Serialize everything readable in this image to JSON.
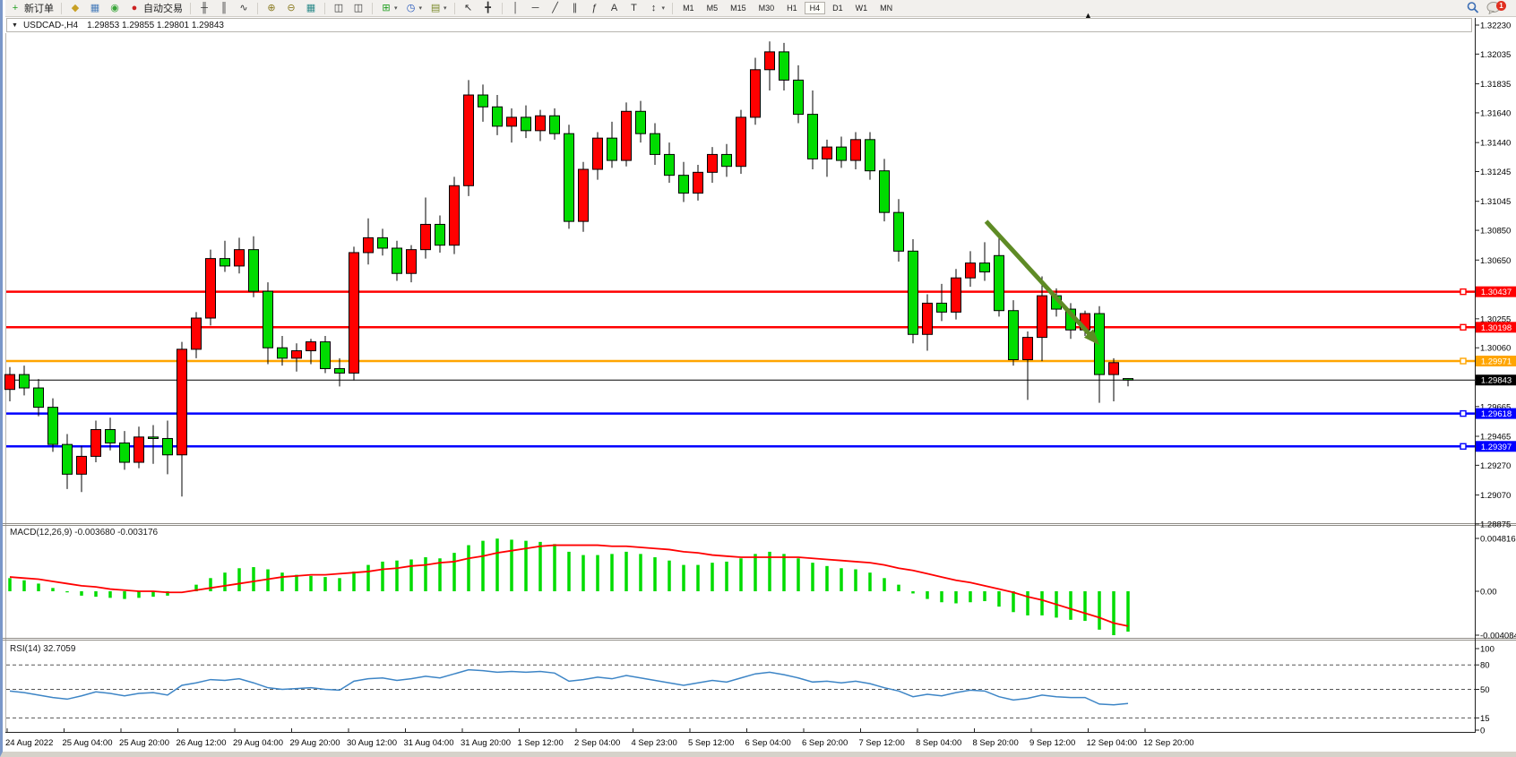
{
  "app": {
    "notification_badge": "1"
  },
  "toolbar": {
    "groups": [
      {
        "items": [
          {
            "name": "new-order-button",
            "glyph": "+",
            "glyph_color": "#1f9e1f",
            "label": "新订单"
          }
        ]
      },
      {
        "items": [
          {
            "name": "styler-button",
            "glyph": "◆",
            "glyph_color": "#c8a024"
          },
          {
            "name": "depth-of-market-button",
            "glyph": "▦",
            "glyph_color": "#4a7ebb"
          },
          {
            "name": "signals-button",
            "glyph": "◉",
            "glyph_color": "#3aa53a"
          },
          {
            "name": "autotrade-button",
            "glyph": "●",
            "glyph_color": "#cc2222",
            "label": "自动交易"
          }
        ]
      },
      {
        "items": [
          {
            "name": "bar-chart-type-button",
            "glyph": "╫",
            "glyph_color": "#333333"
          },
          {
            "name": "candlestick-chart-type-button",
            "glyph": "║",
            "glyph_color": "#333333"
          },
          {
            "name": "line-chart-type-button",
            "glyph": "∿",
            "glyph_color": "#333333"
          }
        ]
      },
      {
        "items": [
          {
            "name": "zoom-in-button",
            "glyph": "⊕",
            "glyph_color": "#8a7a20"
          },
          {
            "name": "zoom-out-button",
            "glyph": "⊖",
            "glyph_color": "#8a7a20"
          },
          {
            "name": "tile-windows-button",
            "glyph": "▦",
            "glyph_color": "#2e8b8b"
          }
        ]
      },
      {
        "items": [
          {
            "name": "indicator-window-button",
            "glyph": "◫",
            "glyph_color": "#333333"
          },
          {
            "name": "indicator-subwindow-button",
            "glyph": "◫",
            "glyph_color": "#333333"
          }
        ]
      },
      {
        "items": [
          {
            "name": "add-indicator-button",
            "glyph": "⊞",
            "glyph_color": "#1f9e1f",
            "dropdown": true
          },
          {
            "name": "periods-clock-button",
            "glyph": "◷",
            "glyph_color": "#2255bb",
            "dropdown": true
          },
          {
            "name": "templates-button",
            "glyph": "▤",
            "glyph_color": "#7a8a2a",
            "dropdown": true
          }
        ]
      },
      {
        "items": [
          {
            "name": "cursor-button",
            "glyph": "↖",
            "glyph_color": "#333333"
          },
          {
            "name": "crosshair-button",
            "glyph": "╋",
            "glyph_color": "#333333"
          }
        ]
      },
      {
        "items": [
          {
            "name": "vertical-line-button",
            "glyph": "│",
            "glyph_color": "#333333"
          },
          {
            "name": "horizontal-line-button",
            "glyph": "─",
            "glyph_color": "#333333"
          },
          {
            "name": "trendline-button",
            "glyph": "╱",
            "glyph_color": "#333333"
          },
          {
            "name": "equidistant-channel-button",
            "glyph": "∥",
            "glyph_color": "#333333"
          },
          {
            "name": "fibonacci-button",
            "glyph": "ƒ",
            "glyph_color": "#333333"
          },
          {
            "name": "text-button",
            "glyph": "A",
            "glyph_color": "#333333"
          },
          {
            "name": "text-label-button",
            "glyph": "T",
            "glyph_color": "#333333"
          },
          {
            "name": "arrows-shapes-button",
            "glyph": "↕",
            "glyph_color": "#333333",
            "dropdown": true
          }
        ]
      }
    ],
    "timeframes": {
      "options": [
        "M1",
        "M5",
        "M15",
        "M30",
        "H1",
        "H4",
        "D1",
        "W1",
        "MN"
      ],
      "active": "H4"
    }
  },
  "chart_header": {
    "collapse_glyph": "▼",
    "symbol": "USDCAD-,H4",
    "ohlc": "1.29853 1.29855 1.29801 1.29843"
  },
  "chart_data": {
    "type": "candlestick",
    "symbol": "USDCAD-",
    "timeframe": "H4",
    "colors": {
      "bull": "#ff0000",
      "bear": "#00dc00",
      "wick": "#000000",
      "macd_histogram": "#00dc00",
      "macd_signal": "#ff0000",
      "rsi_line": "#3d85c6",
      "level_red": "#ff0000",
      "level_orange": "#ffa500",
      "level_blue": "#0000ff",
      "current_price": "#000000",
      "arrow": "#5e8b25"
    },
    "price_axis": {
      "ticks": [
        "1.32230",
        "1.32035",
        "1.31835",
        "1.31640",
        "1.31440",
        "1.31245",
        "1.31045",
        "1.30850",
        "1.30650",
        "1.30255",
        "1.30060",
        "1.29665",
        "1.29465",
        "1.29270",
        "1.29070",
        "1.28875"
      ]
    },
    "hlines": [
      {
        "price": 1.30437,
        "label": "1.30437",
        "color": "#ff0000",
        "kind": "resistance",
        "handle": true
      },
      {
        "price": 1.30198,
        "label": "1.30198",
        "color": "#ff0000",
        "kind": "resistance",
        "handle": true
      },
      {
        "price": 1.29971,
        "label": "1.29971",
        "color": "#ffa500",
        "kind": "pivot",
        "handle": true
      },
      {
        "price": 1.29843,
        "label": "1.29843",
        "color": "#000000",
        "kind": "current-price",
        "handle": false
      },
      {
        "price": 1.29618,
        "label": "1.29618",
        "color": "#0000ff",
        "kind": "support",
        "handle": true
      },
      {
        "price": 1.29397,
        "label": "1.29397",
        "color": "#0000ff",
        "kind": "support",
        "handle": true
      }
    ],
    "candles": [
      [
        1.2978,
        1.2993,
        1.297,
        1.2988
      ],
      [
        1.2988,
        1.2994,
        1.2974,
        1.2979
      ],
      [
        1.2979,
        1.2985,
        1.296,
        1.2966
      ],
      [
        1.2966,
        1.2972,
        1.2936,
        1.2941
      ],
      [
        1.2941,
        1.2948,
        1.2911,
        1.2921
      ],
      [
        1.2921,
        1.294,
        1.2909,
        1.2933
      ],
      [
        1.2933,
        1.2957,
        1.2929,
        1.2951
      ],
      [
        1.2951,
        1.2959,
        1.2937,
        1.2942
      ],
      [
        1.2942,
        1.295,
        1.2924,
        1.2929
      ],
      [
        1.2929,
        1.2953,
        1.2925,
        1.2946
      ],
      [
        1.2946,
        1.2954,
        1.2928,
        1.2945
      ],
      [
        1.2945,
        1.2957,
        1.2921,
        1.2934
      ],
      [
        1.2934,
        1.301,
        1.2906,
        1.3005
      ],
      [
        1.3005,
        1.303,
        1.2999,
        1.3026
      ],
      [
        1.3026,
        1.3072,
        1.3021,
        1.3066
      ],
      [
        1.3066,
        1.3078,
        1.3057,
        1.3061
      ],
      [
        1.3061,
        1.308,
        1.3056,
        1.3072
      ],
      [
        1.3072,
        1.3081,
        1.304,
        1.3044
      ],
      [
        1.3044,
        1.305,
        1.2995,
        1.3006
      ],
      [
        1.3006,
        1.3014,
        1.2994,
        1.2999
      ],
      [
        1.2999,
        1.3009,
        1.299,
        1.3004
      ],
      [
        1.3004,
        1.3012,
        1.2995,
        1.301
      ],
      [
        1.301,
        1.3014,
        1.2989,
        1.2992
      ],
      [
        1.2992,
        1.2999,
        1.298,
        1.2989
      ],
      [
        1.2989,
        1.3074,
        1.2984,
        1.307
      ],
      [
        1.307,
        1.3093,
        1.3062,
        1.308
      ],
      [
        1.308,
        1.3086,
        1.3068,
        1.3073
      ],
      [
        1.3073,
        1.3078,
        1.3051,
        1.3056
      ],
      [
        1.3056,
        1.3075,
        1.305,
        1.3072
      ],
      [
        1.3072,
        1.3107,
        1.3066,
        1.3089
      ],
      [
        1.3089,
        1.3095,
        1.307,
        1.3075
      ],
      [
        1.3075,
        1.3121,
        1.3069,
        1.3115
      ],
      [
        1.3115,
        1.3186,
        1.3108,
        1.3176
      ],
      [
        1.3176,
        1.3183,
        1.3158,
        1.3168
      ],
      [
        1.3168,
        1.3176,
        1.3149,
        1.3155
      ],
      [
        1.3155,
        1.3167,
        1.3144,
        1.3161
      ],
      [
        1.3161,
        1.3169,
        1.3147,
        1.3152
      ],
      [
        1.3152,
        1.3166,
        1.3145,
        1.3162
      ],
      [
        1.3162,
        1.3167,
        1.3146,
        1.315
      ],
      [
        1.315,
        1.3156,
        1.3086,
        1.3091
      ],
      [
        1.3091,
        1.3131,
        1.3084,
        1.3126
      ],
      [
        1.3126,
        1.3151,
        1.3119,
        1.3147
      ],
      [
        1.3147,
        1.3158,
        1.3127,
        1.3132
      ],
      [
        1.3132,
        1.3171,
        1.3128,
        1.3165
      ],
      [
        1.3165,
        1.3172,
        1.3144,
        1.315
      ],
      [
        1.315,
        1.3157,
        1.3129,
        1.3136
      ],
      [
        1.3136,
        1.3144,
        1.3117,
        1.3122
      ],
      [
        1.3122,
        1.3131,
        1.3104,
        1.311
      ],
      [
        1.311,
        1.3129,
        1.3105,
        1.3124
      ],
      [
        1.3124,
        1.3141,
        1.3117,
        1.3136
      ],
      [
        1.3136,
        1.3143,
        1.3121,
        1.3128
      ],
      [
        1.3128,
        1.3166,
        1.3123,
        1.3161
      ],
      [
        1.3161,
        1.3201,
        1.3156,
        1.3193
      ],
      [
        1.3193,
        1.3212,
        1.3179,
        1.3205
      ],
      [
        1.3205,
        1.3211,
        1.3179,
        1.3186
      ],
      [
        1.3186,
        1.3196,
        1.3157,
        1.3163
      ],
      [
        1.3163,
        1.3179,
        1.3126,
        1.3133
      ],
      [
        1.3133,
        1.3146,
        1.3121,
        1.3141
      ],
      [
        1.3141,
        1.3148,
        1.3127,
        1.3132
      ],
      [
        1.3132,
        1.3151,
        1.3126,
        1.3146
      ],
      [
        1.3146,
        1.3151,
        1.3119,
        1.3125
      ],
      [
        1.3125,
        1.3133,
        1.3091,
        1.3097
      ],
      [
        1.3097,
        1.3106,
        1.3064,
        1.3071
      ],
      [
        1.3071,
        1.3079,
        1.3009,
        1.3015
      ],
      [
        1.3015,
        1.3042,
        1.3004,
        1.3036
      ],
      [
        1.3036,
        1.3049,
        1.3024,
        1.303
      ],
      [
        1.303,
        1.3059,
        1.3025,
        1.3053
      ],
      [
        1.3053,
        1.3071,
        1.3047,
        1.3063
      ],
      [
        1.3063,
        1.3077,
        1.3051,
        1.3057
      ],
      [
        1.3068,
        1.3082,
        1.3027,
        1.3031
      ],
      [
        1.3031,
        1.3038,
        1.2994,
        1.2998
      ],
      [
        1.2998,
        1.3017,
        1.2971,
        1.3013
      ],
      [
        1.3013,
        1.3054,
        1.2997,
        1.3041
      ],
      [
        1.3041,
        1.3046,
        1.3027,
        1.3032
      ],
      [
        1.3032,
        1.3036,
        1.3012,
        1.3018
      ],
      [
        1.3018,
        1.3031,
        1.3014,
        1.3029
      ],
      [
        1.3029,
        1.3034,
        1.2969,
        1.2988
      ],
      [
        1.2988,
        1.2999,
        1.297,
        1.2996
      ],
      [
        1.29853,
        1.29855,
        1.29801,
        1.29843
      ]
    ],
    "time_axis": {
      "labels": [
        "24 Aug 2022",
        "25 Aug 04:00",
        "25 Aug 20:00",
        "26 Aug 12:00",
        "29 Aug 04:00",
        "29 Aug 20:00",
        "30 Aug 12:00",
        "31 Aug 04:00",
        "31 Aug 20:00",
        "1 Sep 12:00",
        "2 Sep 04:00",
        "4 Sep 23:00",
        "5 Sep 12:00",
        "6 Sep 04:00",
        "6 Sep 20:00",
        "7 Sep 12:00",
        "8 Sep 04:00",
        "8 Sep 20:00",
        "9 Sep 12:00",
        "12 Sep 04:00",
        "12 Sep 20:00"
      ]
    },
    "macd": {
      "label": "MACD(12,26,9)",
      "values_text": "-0.003680 -0.003176",
      "axis_ticks": [
        "0.004816",
        "0.00",
        "-0.004084"
      ],
      "histogram": [
        0.0012,
        0.001,
        0.0007,
        0.0003,
        -0.0001,
        -0.0004,
        -0.0005,
        -0.0006,
        -0.0007,
        -0.0006,
        -0.0005,
        -0.0004,
        0.0,
        0.0006,
        0.0012,
        0.0017,
        0.0021,
        0.0022,
        0.002,
        0.0017,
        0.0015,
        0.0014,
        0.0013,
        0.0012,
        0.0018,
        0.0024,
        0.0027,
        0.0028,
        0.0029,
        0.0031,
        0.003,
        0.0035,
        0.0042,
        0.0046,
        0.0048,
        0.0047,
        0.0046,
        0.0045,
        0.0043,
        0.0036,
        0.0033,
        0.0033,
        0.0034,
        0.0036,
        0.0034,
        0.0031,
        0.0028,
        0.0024,
        0.0024,
        0.0026,
        0.0027,
        0.003,
        0.0034,
        0.0036,
        0.0034,
        0.003,
        0.0026,
        0.0023,
        0.0021,
        0.002,
        0.0017,
        0.0012,
        0.0006,
        -0.0002,
        -0.0007,
        -0.001,
        -0.0011,
        -0.001,
        -0.0009,
        -0.0014,
        -0.0019,
        -0.0022,
        -0.0022,
        -0.0024,
        -0.0026,
        -0.0027,
        -0.0035,
        -0.004,
        -0.00368
      ],
      "signal": [
        0.0013,
        0.0012,
        0.0011,
        0.0009,
        0.0007,
        0.0005,
        0.0004,
        0.0002,
        0.0001,
        0.0,
        0.0,
        -0.0001,
        -0.0001,
        0.0001,
        0.0003,
        0.0005,
        0.0007,
        0.0009,
        0.0011,
        0.0013,
        0.0014,
        0.0015,
        0.0015,
        0.0016,
        0.0017,
        0.0018,
        0.002,
        0.0021,
        0.0023,
        0.0024,
        0.0026,
        0.0027,
        0.003,
        0.0032,
        0.0035,
        0.0037,
        0.0039,
        0.0041,
        0.0042,
        0.0042,
        0.0042,
        0.0042,
        0.0041,
        0.0041,
        0.004,
        0.0039,
        0.0038,
        0.0036,
        0.0035,
        0.0033,
        0.0032,
        0.0031,
        0.0031,
        0.0031,
        0.0031,
        0.0031,
        0.003,
        0.0029,
        0.0028,
        0.0027,
        0.0026,
        0.0024,
        0.0021,
        0.0019,
        0.0016,
        0.0013,
        0.001,
        0.0008,
        0.0005,
        0.0002,
        -0.0001,
        -0.0005,
        -0.0008,
        -0.0012,
        -0.0016,
        -0.002,
        -0.0024,
        -0.0029,
        -0.003176
      ]
    },
    "rsi": {
      "label": "RSI(14)",
      "value_text": "32.7059",
      "axis_ticks": [
        "100",
        "80",
        "50",
        "15",
        "0"
      ],
      "levels": [
        80,
        50,
        15
      ],
      "series": [
        48,
        46,
        43,
        40,
        38,
        42,
        47,
        45,
        42,
        45,
        46,
        43,
        55,
        58,
        62,
        61,
        63,
        58,
        52,
        50,
        51,
        52,
        50,
        49,
        60,
        63,
        64,
        61,
        63,
        66,
        64,
        69,
        74,
        73,
        71,
        72,
        71,
        72,
        70,
        60,
        62,
        65,
        63,
        67,
        64,
        61,
        58,
        55,
        58,
        61,
        59,
        64,
        69,
        71,
        68,
        64,
        59,
        60,
        58,
        60,
        57,
        52,
        48,
        41,
        44,
        42,
        46,
        49,
        48,
        41,
        37,
        39,
        43,
        41,
        40,
        40,
        32,
        31,
        32.7
      ]
    },
    "annotation_arrow": {
      "from_index": 68.1,
      "from_price": 1.3091,
      "to_index": 75.8,
      "to_price": 1.301
    }
  }
}
